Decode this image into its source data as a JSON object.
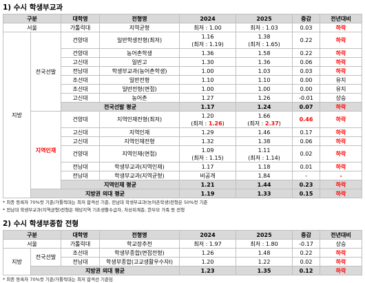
{
  "section1": {
    "title": "1) 수시 학생부교과",
    "headers": [
      "구분",
      "대학명",
      "전형명",
      "2024",
      "2025",
      "증감",
      "전년대비"
    ],
    "seoul": {
      "region": "서울",
      "univ": "가톨릭대",
      "type": "지역균형",
      "y2024": "최저 : 1.00",
      "y2025": "최저 : 1.03",
      "diff": "0.03",
      "trend": "하락"
    },
    "jibang": "지방",
    "jeonguk": "전국선발",
    "jiyeok": "지역인재",
    "rows_a": [
      {
        "univ": "건양대",
        "type": "일반학생전형(최저)",
        "y2024": "1.16",
        "y2024b": "(최저 : 1.19)",
        "y2025": "1.38",
        "y2025b": "(최저 : 1.65)",
        "diff": "0.22",
        "trend": "하락"
      },
      {
        "univ": "건양대",
        "type": "농어촌학생",
        "y2024": "1.36",
        "y2025": "1.58",
        "diff": "0.22",
        "trend": "하락"
      },
      {
        "univ": "고신대",
        "type": "일반고",
        "y2024": "1.30",
        "y2025": "1.36",
        "diff": "0.06",
        "trend": "하락"
      },
      {
        "univ": "전남대",
        "type": "학생부교과(농어촌학생)",
        "y2024": "1.00",
        "y2025": "1.03",
        "diff": "0.03",
        "trend": "하락"
      },
      {
        "univ": "조선대",
        "type": "일반전형",
        "y2024": "1.10",
        "y2025": "1.10",
        "diff": "0.00",
        "trend": "유지"
      },
      {
        "univ": "조선대",
        "type": "일반전형(면접)",
        "y2024": "1.00",
        "y2025": "1.00",
        "diff": "0.00",
        "trend": "유지"
      },
      {
        "univ": "고신대",
        "type": "농어촌",
        "y2024": "1.27",
        "y2025": "1.26",
        "diff": "-0.01",
        "trend": "상승"
      }
    ],
    "sum_a": {
      "label": "전국선발 평균",
      "y2024": "1.17",
      "y2025": "1.24",
      "diff": "0.07",
      "trend": "하락"
    },
    "rows_b": [
      {
        "univ": "건양대",
        "type": "지역인재전형(최저)",
        "y2024": "1.20",
        "y2024b_pre": "(최저 : ",
        "y2024b_val": "1.26",
        "y2024b_post": ")",
        "y2025": "1.66",
        "y2025b_pre": "(최저 : ",
        "y2025b_val": "2.37",
        "y2025b_post": ")",
        "diff": "0.46",
        "trend": "하락"
      },
      {
        "univ": "고신대",
        "type": "지역인재",
        "y2024": "1.29",
        "y2025": "1.46",
        "diff": "0.17",
        "trend": "하락"
      },
      {
        "univ": "고신대",
        "type": "지역인재전형",
        "y2024": "1.32",
        "y2025": "1.38",
        "diff": "0.06",
        "trend": "하락"
      },
      {
        "univ": "건양대",
        "type": "지역인재(면접)",
        "y2024": "1.09",
        "y2024b": "(최저 : 1.15)",
        "y2025": "1.11",
        "y2025b": "(최저 : 1.14)",
        "diff": "0.02",
        "trend": "하락"
      },
      {
        "univ": "전남대",
        "type": "학생부교과(지역인재)",
        "y2024": "1.17",
        "y2025": "1.18",
        "diff": "0.01",
        "trend": "하락"
      },
      {
        "univ": "전남대",
        "type": "학생부교과(지역균형)",
        "y2024": "비공개",
        "y2025": "1.84",
        "diff": "-",
        "trend": "-"
      }
    ],
    "sum_b": {
      "label": "지역인재 평균",
      "y2024": "1.21",
      "y2025": "1.44",
      "diff": "0.23",
      "trend": "하락"
    },
    "sum_total": {
      "label": "지방권 의대 평균",
      "y2024": "1.19",
      "y2025": "1.33",
      "diff": "0.15",
      "trend": "하락"
    },
    "note1": "* 최종 등록자 70%컷 기준/가톨릭대는 최저 합격선 기준, 전남대 학생부교과(농어촌학생)전형은 50%컷 기준",
    "note2": "* 전남대 학생부교과(지역균형)전형은 해당지역 기초생활수급자, 차상위계층, 한부모 가족 등 전형"
  },
  "section2": {
    "title": "2) 수시 학생부종합 전형",
    "headers": [
      "구분",
      "대학명",
      "전형명",
      "2024",
      "2025",
      "증감",
      "전년대비"
    ],
    "seoul": {
      "region": "서울",
      "univ": "가톨릭대",
      "type": "학교장추천",
      "y2024": "최저 : 1.97",
      "y2025": "최저 : 1.80",
      "diff": "-0.17",
      "trend": "상승"
    },
    "jibang": "지방",
    "jeonguk": "전국선발",
    "rows": [
      {
        "univ": "조선대",
        "type": "학생부종합(면접전형)",
        "y2024": "1.26",
        "y2025": "1.48",
        "diff": "0.22",
        "trend": "하락"
      },
      {
        "univ": "전남대",
        "type": "학생부종합(고교생활우수자Ⅰ)",
        "y2024": "1.20",
        "y2025": "1.22",
        "diff": "0.02",
        "trend": "하락"
      }
    ],
    "sum": {
      "label": "지방권 의대 평균",
      "y2024": "1.23",
      "y2025": "1.35",
      "diff": "0.12",
      "trend": "하락"
    },
    "note": "* 최종 등록자 70%컷 기준/가톨릭대는 최저 합격선 기준임"
  }
}
